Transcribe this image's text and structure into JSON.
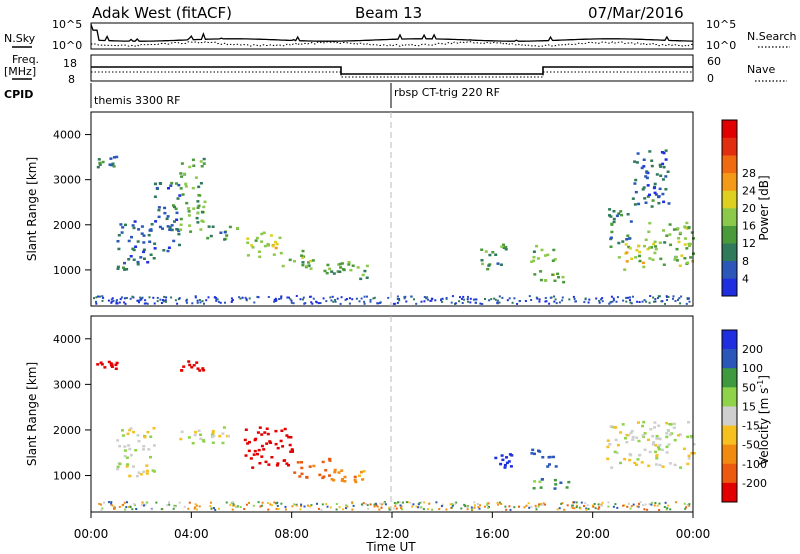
{
  "header": {
    "title_left": "Adak West (fitACF)",
    "title_center": "Beam 13",
    "title_right": "07/Mar/2016"
  },
  "top_panel": {
    "left_label": "N.Sky",
    "right_label": "N.Search",
    "left_ticks": [
      "10^5",
      "10^0"
    ],
    "right_ticks": [
      "10^5",
      "10^0"
    ]
  },
  "freq_panel": {
    "left_label_1": "Freq.",
    "left_label_2": "[MHz]",
    "left_ticks": [
      "18",
      "8"
    ],
    "right_ticks": [
      "60",
      "0"
    ],
    "right_label": "Nave"
  },
  "cpid_panel": {
    "label": "CPID",
    "programs": [
      "themis 3300 RF",
      "rbsp CT-trig 220 RF"
    ]
  },
  "chart_data": [
    {
      "type": "heatmap",
      "title": "",
      "xlabel": "Time UT",
      "ylabel": "Slant Range [km]",
      "xlim": [
        0,
        24
      ],
      "ylim": [
        200,
        4500
      ],
      "x_ticks": [
        "00:00",
        "04:00",
        "08:00",
        "12:00",
        "16:00",
        "20:00",
        "00:00"
      ],
      "y_ticks": [
        1000,
        2000,
        3000,
        4000
      ],
      "colorbar": {
        "label": "Power [dB]",
        "range": [
          0,
          32
        ],
        "ticks": [
          "4",
          "8",
          "12",
          "16",
          "20",
          "24",
          "28"
        ],
        "colors": [
          "#1f2fe0",
          "#2a57b8",
          "#2f7a5a",
          "#4b9a3a",
          "#8cc84a",
          "#ddd020",
          "#f39a18",
          "#ef6a10",
          "#e22e10",
          "#e00000"
        ]
      },
      "echo_regions": [
        {
          "t": [
            0.2,
            1.0
          ],
          "range_km": [
            3300,
            3550
          ],
          "level": 8
        },
        {
          "t": [
            1.0,
            2.5
          ],
          "range_km": [
            1000,
            2100
          ],
          "level": 6
        },
        {
          "t": [
            2.5,
            3.5
          ],
          "range_km": [
            1400,
            3000
          ],
          "level": 7
        },
        {
          "t": [
            3.5,
            4.5
          ],
          "range_km": [
            1850,
            3550
          ],
          "level": 12
        },
        {
          "t": [
            4.5,
            6.0
          ],
          "range_km": [
            1700,
            2000
          ],
          "level": 10
        },
        {
          "t": [
            6.0,
            7.5
          ],
          "range_km": [
            1300,
            1850
          ],
          "level": 16
        },
        {
          "t": [
            7.5,
            9.0
          ],
          "range_km": [
            1050,
            1450
          ],
          "level": 13
        },
        {
          "t": [
            9.0,
            10.0
          ],
          "range_km": [
            900,
            1200
          ],
          "level": 10
        },
        {
          "t": [
            10.0,
            11.0
          ],
          "range_km": [
            800,
            1200
          ],
          "level": 12
        },
        {
          "t": [
            15.5,
            16.5
          ],
          "range_km": [
            1000,
            1600
          ],
          "level": 10
        },
        {
          "t": [
            17.5,
            18.5
          ],
          "range_km": [
            1200,
            1600
          ],
          "level": 12
        },
        {
          "t": [
            17.6,
            18.8
          ],
          "range_km": [
            700,
            1000
          ],
          "level": 14
        },
        {
          "t": [
            20.5,
            21.5
          ],
          "range_km": [
            1500,
            2400
          ],
          "level": 9
        },
        {
          "t": [
            21.0,
            22.0
          ],
          "range_km": [
            1000,
            1600
          ],
          "level": 16
        },
        {
          "t": [
            22.0,
            24.0
          ],
          "range_km": [
            1100,
            2100
          ],
          "level": 13
        },
        {
          "t": [
            21.5,
            23.0
          ],
          "range_km": [
            2400,
            3700
          ],
          "level": 6
        }
      ]
    },
    {
      "type": "heatmap",
      "title": "",
      "xlabel": "Time UT",
      "ylabel": "Slant Range [km]",
      "xlim": [
        0,
        24
      ],
      "ylim": [
        200,
        4500
      ],
      "x_ticks": [
        "00:00",
        "04:00",
        "08:00",
        "12:00",
        "16:00",
        "20:00",
        "00:00"
      ],
      "y_ticks": [
        1000,
        2000,
        3000,
        4000
      ],
      "colorbar": {
        "label": "Velocity [m s^-1]",
        "ticks": [
          "200",
          "100",
          "50",
          "15",
          "-15",
          "-50",
          "-100",
          "-200"
        ],
        "colors": [
          "#1f2fe0",
          "#2a57b8",
          "#3f9a3f",
          "#8ed34a",
          "#cfcfcf",
          "#f6c020",
          "#f08a10",
          "#ec5a10",
          "#e20000"
        ]
      },
      "echo_regions": [
        {
          "t": [
            0.2,
            1.0
          ],
          "range_km": [
            3300,
            3550
          ],
          "velocity": -200
        },
        {
          "t": [
            1.0,
            2.5
          ],
          "range_km": [
            1000,
            2100
          ],
          "velocity": 0
        },
        {
          "t": [
            3.5,
            4.5
          ],
          "range_km": [
            3300,
            3550
          ],
          "velocity": -200
        },
        {
          "t": [
            3.5,
            5.5
          ],
          "range_km": [
            1700,
            2100
          ],
          "velocity": 0
        },
        {
          "t": [
            6.0,
            8.0
          ],
          "range_km": [
            1200,
            2100
          ],
          "velocity": -200
        },
        {
          "t": [
            8.0,
            9.5
          ],
          "range_km": [
            950,
            1400
          ],
          "velocity": -100
        },
        {
          "t": [
            9.5,
            11.0
          ],
          "range_km": [
            800,
            1200
          ],
          "velocity": -50
        },
        {
          "t": [
            16.0,
            16.8
          ],
          "range_km": [
            1100,
            1500
          ],
          "velocity": 200
        },
        {
          "t": [
            17.5,
            18.5
          ],
          "range_km": [
            1200,
            1600
          ],
          "velocity": 100
        },
        {
          "t": [
            17.6,
            19.0
          ],
          "range_km": [
            700,
            1000
          ],
          "velocity": 50
        },
        {
          "t": [
            20.5,
            24.0
          ],
          "range_km": [
            1200,
            2200
          ],
          "velocity": 0
        }
      ]
    }
  ]
}
